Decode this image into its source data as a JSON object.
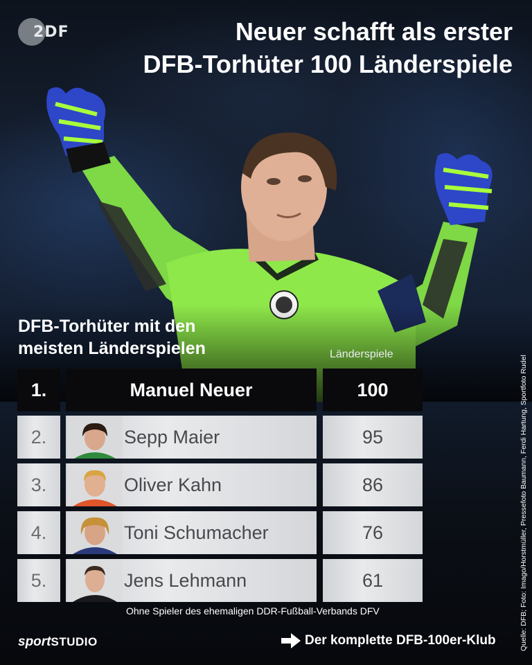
{
  "logo": {
    "text": "2DF"
  },
  "headline": {
    "line1": "Neuer schafft als erster",
    "line2": "DFB-Torhüter 100 Länderspiele"
  },
  "section": {
    "title_line1": "DFB-Torhüter mit den",
    "title_line2": "meisten Länderspielen",
    "column_header": "Länderspiele"
  },
  "ranking": [
    {
      "rank": "1.",
      "name": "Manuel Neuer",
      "caps": "100"
    },
    {
      "rank": "2.",
      "name": "Sepp Maier",
      "caps": "95"
    },
    {
      "rank": "3.",
      "name": "Oliver Kahn",
      "caps": "86"
    },
    {
      "rank": "4.",
      "name": "Toni Schumacher",
      "caps": "76"
    },
    {
      "rank": "5.",
      "name": "Jens Lehmann",
      "caps": "61"
    }
  ],
  "footnote": "Ohne Spieler des ehemaligen DDR-Fußball-Verbands DFV",
  "brand": {
    "part1": "sport",
    "part2": "STUDIO"
  },
  "cta": {
    "label": "Der komplette DFB-100er-Klub",
    "icon": "arrow-right-icon"
  },
  "credit": "Quelle: DFB; Foto: Imago/Horstmüller, Pressefoto Baumann, Ferdi Hartung, Sportfoto Rudel",
  "colors": {
    "jersey": "#8ee84a",
    "glove": "#2d47c8",
    "glove_accent": "#a8ff3a",
    "background": "#101722"
  }
}
